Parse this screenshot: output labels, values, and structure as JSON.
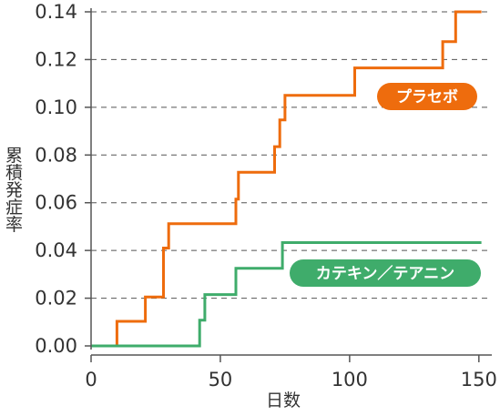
{
  "chart_data": {
    "type": "line",
    "step": true,
    "xlabel": "日数",
    "ylabel": "累積発症率",
    "xlim": [
      0,
      155
    ],
    "ylim": [
      0,
      0.14
    ],
    "x_ticks": [
      0,
      50,
      100,
      150
    ],
    "x_tick_labels": [
      "0",
      "50",
      "100",
      "150"
    ],
    "y_ticks": [
      0,
      0.02,
      0.04,
      0.06,
      0.08,
      0.1,
      0.12,
      0.14
    ],
    "y_tick_labels": [
      "0.00",
      "0.02",
      "0.04",
      "0.06",
      "0.08",
      "0.10",
      "0.12",
      "0.14"
    ],
    "grid": "horizontal-dashed",
    "series": [
      {
        "name": "プラセボ",
        "color": "#ee6c0d",
        "points": [
          [
            0,
            0
          ],
          [
            10,
            0
          ],
          [
            10,
            0.0103
          ],
          [
            21,
            0.0103
          ],
          [
            21,
            0.0205
          ],
          [
            28,
            0.0205
          ],
          [
            28,
            0.041
          ],
          [
            30,
            0.041
          ],
          [
            30,
            0.0512
          ],
          [
            56,
            0.0512
          ],
          [
            56,
            0.0615
          ],
          [
            57,
            0.0615
          ],
          [
            57,
            0.0728
          ],
          [
            71,
            0.0728
          ],
          [
            71,
            0.0835
          ],
          [
            73,
            0.0835
          ],
          [
            73,
            0.0947
          ],
          [
            75,
            0.0947
          ],
          [
            75,
            0.105
          ],
          [
            102,
            0.105
          ],
          [
            102,
            0.1165
          ],
          [
            136,
            0.1165
          ],
          [
            136,
            0.1275
          ],
          [
            141,
            0.1275
          ],
          [
            141,
            0.14
          ],
          [
            151,
            0.14
          ]
        ]
      },
      {
        "name": "カテキン／テアニン",
        "color": "#3fac6b",
        "points": [
          [
            0,
            0
          ],
          [
            42,
            0
          ],
          [
            42,
            0.0108
          ],
          [
            44,
            0.0108
          ],
          [
            44,
            0.0215
          ],
          [
            56,
            0.0215
          ],
          [
            56,
            0.0325
          ],
          [
            74,
            0.0325
          ],
          [
            74,
            0.0433
          ],
          [
            151,
            0.0433
          ]
        ]
      }
    ]
  }
}
